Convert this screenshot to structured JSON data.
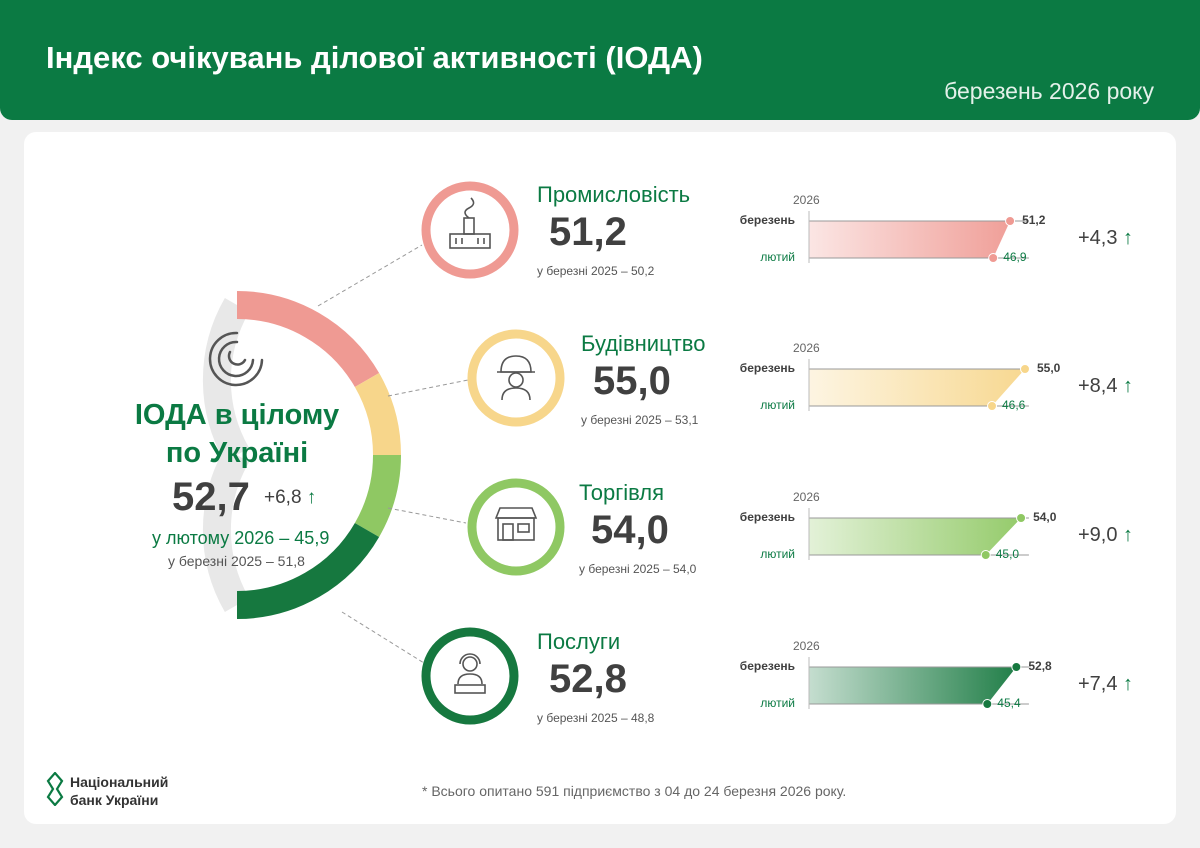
{
  "header": {
    "title": "Індекс очікувань ділової активності (ІОДА)",
    "date": "березень 2026 року"
  },
  "overall": {
    "title_line1": "ІОДА в цілому",
    "title_line2": "по Україні",
    "value": "52,7",
    "delta": "+6,8",
    "feb": "у лютому 2026 – 45,9",
    "prev_year": "у березні 2025 – 51,8"
  },
  "chart_labels": {
    "year": "2026",
    "march": "березень",
    "february": "лютий"
  },
  "sectors": [
    {
      "name": "Промисловість",
      "value": "51,2",
      "prev": "у березні 2025 – 50,2",
      "mar": 51.2,
      "feb": 46.9,
      "mar_label": "51,2",
      "feb_label": "46,9",
      "delta": "+4,3",
      "color": "#ef9a93",
      "icon": "factory-icon"
    },
    {
      "name": "Будівництво",
      "value": "55,0",
      "prev": "у березні 2025 – 53,1",
      "mar": 55.0,
      "feb": 46.6,
      "mar_label": "55,0",
      "feb_label": "46,6",
      "delta": "+8,4",
      "color": "#f7d68b",
      "icon": "builder-icon"
    },
    {
      "name": "Торгівля",
      "value": "54,0",
      "prev": "у березні 2025 – 54,0",
      "mar": 54.0,
      "feb": 45.0,
      "mar_label": "54,0",
      "feb_label": "45,0",
      "delta": "+9,0",
      "color": "#8fc863",
      "icon": "shop-icon"
    },
    {
      "name": "Послуги",
      "value": "52,8",
      "prev": "у березні 2025 – 48,8",
      "mar": 52.8,
      "feb": 45.4,
      "mar_label": "52,8",
      "feb_label": "45,4",
      "delta": "+7,4",
      "color": "#16783f",
      "icon": "operator-icon"
    }
  ],
  "chart_data": {
    "type": "bar",
    "categories": [
      "Промисловість",
      "Будівництво",
      "Торгівля",
      "Послуги"
    ],
    "series": [
      {
        "name": "березень",
        "values": [
          51.2,
          55.0,
          54.0,
          52.8
        ]
      },
      {
        "name": "лютий",
        "values": [
          46.9,
          46.6,
          45.0,
          45.4
        ]
      }
    ]
  },
  "arrow_glyph": "↑",
  "footnote": "* Всього опитано 591 підприємство з 04 до 24 березня 2026 року.",
  "logo": {
    "line1": "Національний",
    "line2": "банк України"
  },
  "colors": {
    "brand_green": "#0b7a43",
    "industry": "#ef9a93",
    "construction": "#f7d68b",
    "trade": "#8fc863",
    "services": "#16783f"
  }
}
